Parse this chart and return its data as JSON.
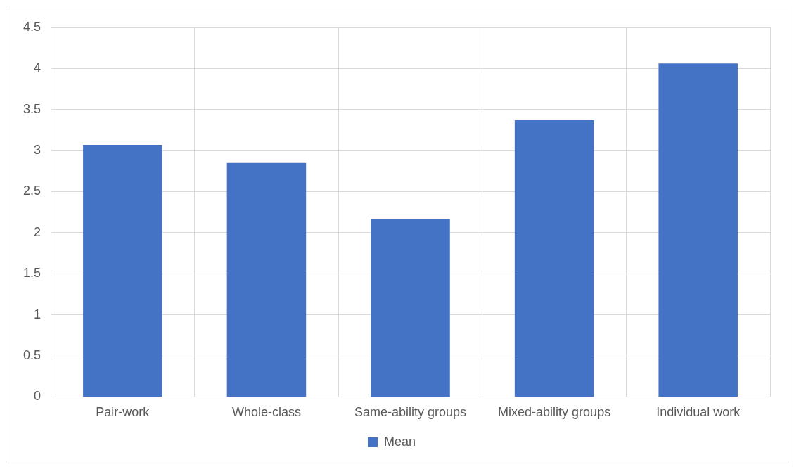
{
  "chart_data": {
    "type": "bar",
    "categories": [
      "Pair-work",
      "Whole-class",
      "Same-ability groups",
      "Mixed-ability groups",
      "Individual work"
    ],
    "series": [
      {
        "name": "Mean",
        "color": "#4472c4",
        "values": [
          3.07,
          2.85,
          2.17,
          3.37,
          4.06
        ]
      }
    ],
    "ylim": [
      0,
      4.5
    ],
    "yticks": [
      0,
      {
        "value": 0.5,
        "label": "0.5"
      },
      1,
      {
        "value": 1.5,
        "label": "1.5"
      },
      2,
      {
        "value": 2.5,
        "label": "2.5"
      },
      3,
      {
        "value": 3.5,
        "label": "3.5"
      },
      4,
      {
        "value": 4.5,
        "label": "4.5"
      }
    ],
    "grid": true,
    "legend": "bottom"
  }
}
